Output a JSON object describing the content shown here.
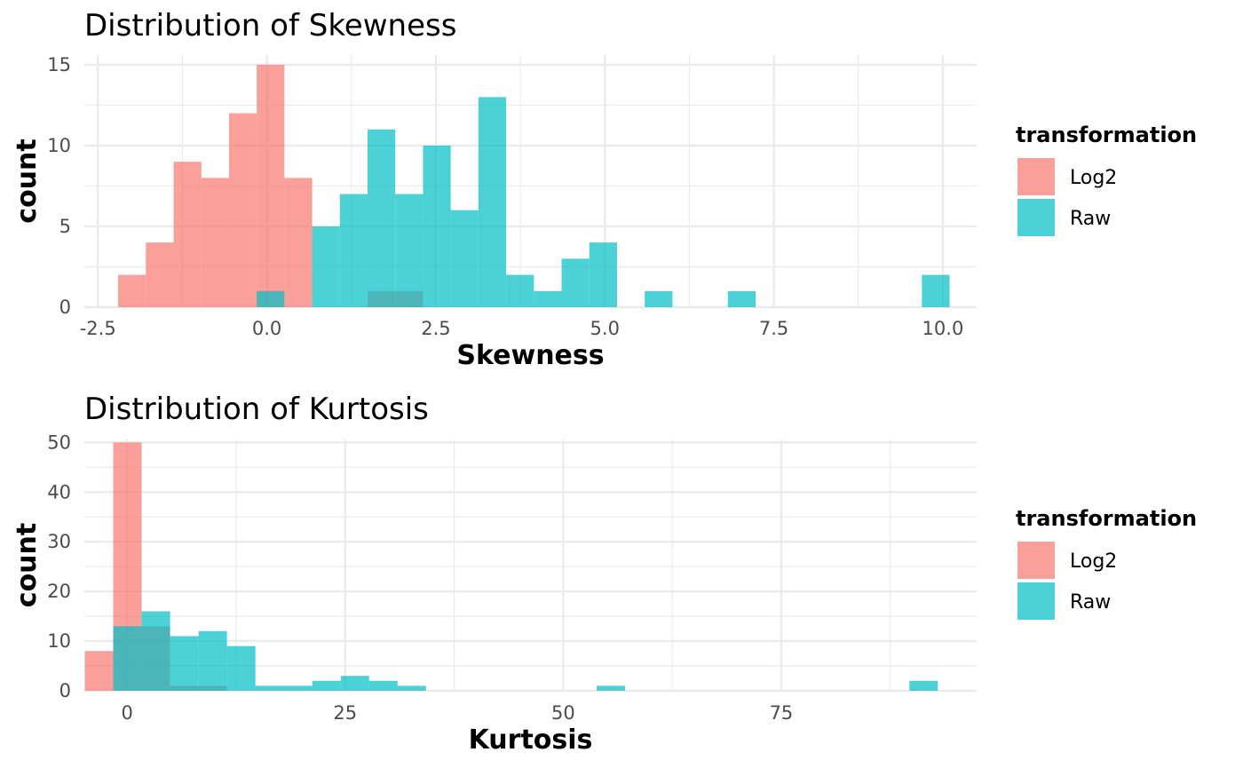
{
  "colors": {
    "Log2": "#F8766D",
    "Raw": "#00BFC4",
    "overlap": "#3aaeab",
    "grid": "#ebebeb"
  },
  "chart_data": [
    {
      "type": "bar",
      "title": "Distribution of Skewness",
      "xlabel": "Skewness",
      "ylabel": "count",
      "xlim": [
        -2.7,
        10.5
      ],
      "ylim": [
        0,
        15.6
      ],
      "xticks": [
        -2.5,
        0.0,
        2.5,
        5.0,
        7.5,
        10.0
      ],
      "xtick_labels": [
        "-2.5",
        "0.0",
        "2.5",
        "5.0",
        "7.5",
        "10.0"
      ],
      "yticks": [
        0,
        5,
        10,
        15
      ],
      "ytick_labels": [
        "0",
        "5",
        "10",
        "15"
      ],
      "legend": {
        "title": "transformation",
        "entries": [
          "Log2",
          "Raw"
        ],
        "position": "right"
      },
      "series": [
        {
          "name": "Log2",
          "bin_width": 0.41,
          "bins": [
            [
              -2.2,
              2
            ],
            [
              -1.79,
              4
            ],
            [
              -1.38,
              9
            ],
            [
              -0.97,
              8
            ],
            [
              -0.56,
              12
            ],
            [
              -0.15,
              15
            ],
            [
              0.26,
              8
            ],
            [
              1.49,
              1
            ],
            [
              1.9,
              1
            ]
          ]
        },
        {
          "name": "Raw",
          "bin_width": 0.41,
          "bins": [
            [
              -0.15,
              1
            ],
            [
              0.67,
              5
            ],
            [
              1.08,
              7
            ],
            [
              1.49,
              11
            ],
            [
              1.9,
              7
            ],
            [
              2.31,
              10
            ],
            [
              2.72,
              6
            ],
            [
              3.13,
              13
            ],
            [
              3.54,
              2
            ],
            [
              3.95,
              1
            ],
            [
              4.36,
              3
            ],
            [
              4.77,
              4
            ],
            [
              5.59,
              1
            ],
            [
              6.82,
              1
            ],
            [
              9.69,
              2
            ]
          ]
        }
      ]
    },
    {
      "type": "bar",
      "title": "Distribution of Kurtosis",
      "xlabel": "Kurtosis",
      "ylabel": "count",
      "xlim": [
        -4.9,
        97.4
      ],
      "ylim": [
        0,
        50.6
      ],
      "xticks": [
        0,
        25,
        50,
        75
      ],
      "xtick_labels": [
        "0",
        "25",
        "50",
        "75"
      ],
      "yticks": [
        0,
        10,
        20,
        30,
        40,
        50
      ],
      "ytick_labels": [
        "0",
        "10",
        "20",
        "30",
        "40",
        "50"
      ],
      "legend": {
        "title": "transformation",
        "entries": [
          "Log2",
          "Raw"
        ],
        "position": "right"
      },
      "series": [
        {
          "name": "Log2",
          "bin_width": 3.26,
          "bins": [
            [
              -4.85,
              8
            ],
            [
              -1.59,
              50
            ],
            [
              1.67,
              13
            ],
            [
              4.93,
              1
            ],
            [
              8.19,
              1
            ]
          ]
        },
        {
          "name": "Raw",
          "bin_width": 3.26,
          "bins": [
            [
              -1.59,
              13
            ],
            [
              1.67,
              16
            ],
            [
              4.93,
              11
            ],
            [
              8.19,
              12
            ],
            [
              11.45,
              9
            ],
            [
              14.71,
              1
            ],
            [
              17.97,
              1
            ],
            [
              21.23,
              2
            ],
            [
              24.49,
              3
            ],
            [
              27.75,
              2
            ],
            [
              31.01,
              1
            ],
            [
              53.83,
              1
            ],
            [
              89.69,
              2
            ]
          ]
        }
      ]
    }
  ]
}
